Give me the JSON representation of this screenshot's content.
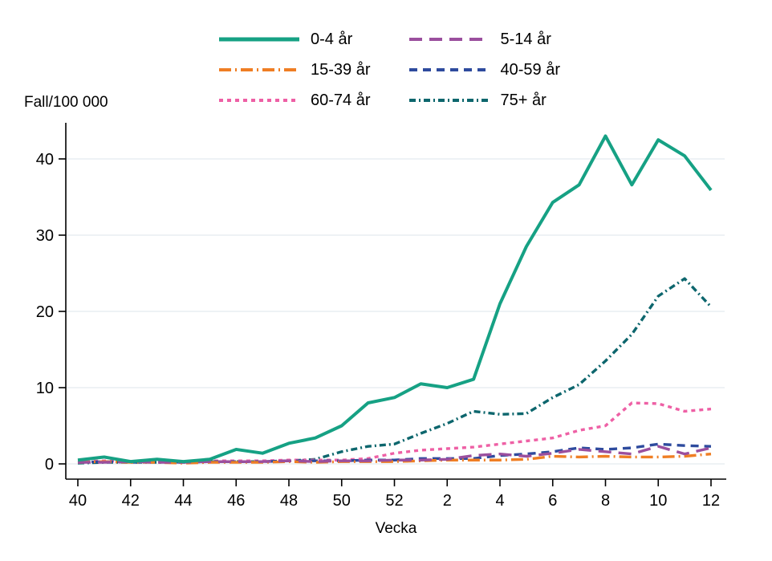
{
  "page": {
    "background": "#ffffff",
    "text_color": "#000000",
    "gridline_color": "#e9eef2",
    "axis_color": "#000000"
  },
  "y_axis": {
    "title": "Fall/100 000",
    "ticks": [
      0,
      10,
      20,
      30,
      40
    ]
  },
  "x_axis": {
    "title": "Vecka",
    "tick_labels": [
      "40",
      "42",
      "44",
      "46",
      "48",
      "50",
      "52",
      "2",
      "4",
      "6",
      "8",
      "10",
      "12"
    ]
  },
  "chart_data": {
    "type": "line",
    "title": "",
    "xlabel": "Vecka",
    "ylabel": "Fall/100 000",
    "x": [
      "40",
      "41",
      "42",
      "43",
      "44",
      "45",
      "46",
      "47",
      "48",
      "49",
      "50",
      "51",
      "52",
      "1",
      "2",
      "3",
      "4",
      "5",
      "6",
      "7",
      "8",
      "9",
      "10",
      "11",
      "12"
    ],
    "ylim": [
      0,
      45
    ],
    "yticks": [
      0,
      10,
      20,
      30,
      40
    ],
    "grid": "horizontal",
    "legend_position": "top-center",
    "series": [
      {
        "name": "0-4 år",
        "color": "#16a184",
        "dash": "solid",
        "values": [
          0.5,
          0.9,
          0.3,
          0.6,
          0.3,
          0.6,
          1.9,
          1.4,
          2.7,
          3.4,
          5.0,
          8.0,
          8.7,
          10.5,
          10.0,
          11.1,
          21.0,
          28.5,
          34.3,
          36.6,
          43.0,
          36.6,
          42.5,
          40.4,
          35.9
        ]
      },
      {
        "name": "5-14 år",
        "color": "#9b4f9e",
        "dash": "long-dash",
        "values": [
          0.2,
          0.2,
          0.3,
          0.2,
          0.2,
          0.3,
          0.3,
          0.3,
          0.4,
          0.3,
          0.4,
          0.4,
          0.5,
          0.5,
          0.6,
          1.1,
          1.3,
          1.0,
          1.4,
          1.9,
          1.6,
          1.3,
          2.3,
          1.3,
          2.1
        ]
      },
      {
        "name": "15-39 år",
        "color": "#ef7e24",
        "dash": "dash-dot",
        "values": [
          0.2,
          0.3,
          0.2,
          0.2,
          0.1,
          0.2,
          0.2,
          0.2,
          0.3,
          0.2,
          0.3,
          0.3,
          0.3,
          0.4,
          0.5,
          0.5,
          0.5,
          0.6,
          1.0,
          0.9,
          1.0,
          0.9,
          0.9,
          1.0,
          1.3
        ]
      },
      {
        "name": "40-59 år",
        "color": "#2e4b9e",
        "dash": "dash",
        "values": [
          0.2,
          0.3,
          0.2,
          0.3,
          0.2,
          0.3,
          0.3,
          0.3,
          0.4,
          0.4,
          0.4,
          0.5,
          0.5,
          0.7,
          0.7,
          0.7,
          1.1,
          1.3,
          1.6,
          2.1,
          1.9,
          2.1,
          2.6,
          2.4,
          2.3
        ]
      },
      {
        "name": "60-74 år",
        "color": "#ee60a5",
        "dash": "dot",
        "values": [
          0.3,
          0.4,
          0.3,
          0.4,
          0.3,
          0.4,
          0.4,
          0.4,
          0.5,
          0.5,
          0.5,
          0.7,
          1.4,
          1.8,
          2.0,
          2.2,
          2.6,
          3.0,
          3.4,
          4.4,
          5.0,
          8.0,
          7.9,
          6.9,
          7.2
        ]
      },
      {
        "name": "75+ år",
        "color": "#0d666d",
        "dash": "dash-dot-dot",
        "values": [
          0.1,
          0.2,
          0.2,
          0.2,
          0.2,
          0.3,
          0.3,
          0.3,
          0.4,
          0.6,
          1.6,
          2.3,
          2.6,
          4.0,
          5.3,
          6.9,
          6.5,
          6.6,
          8.7,
          10.4,
          13.5,
          17.0,
          22.0,
          24.3,
          20.6
        ]
      }
    ]
  }
}
